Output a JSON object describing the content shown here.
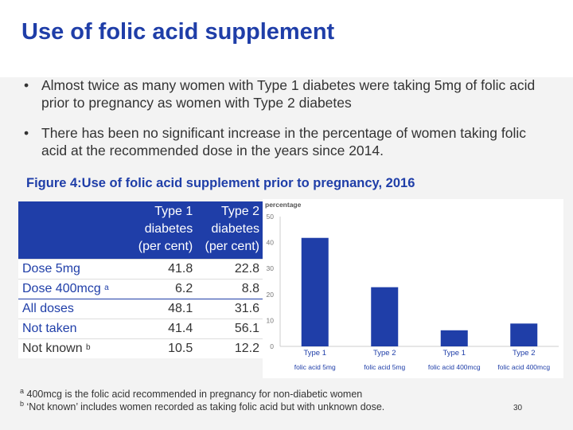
{
  "title": "Use of folic acid supplement",
  "bullets": [
    "Almost twice as many women with Type 1 diabetes were taking 5mg of folic acid prior to pregnancy as women with Type 2 diabetes",
    "There has been no significant increase in the percentage of women taking folic acid at the recommended dose in the years since 2014."
  ],
  "bullet_glyph": "•",
  "figure_title": "Figure 4:Use of folic acid supplement prior to pregnancy, 2016",
  "table": {
    "headers": [
      "",
      "Type 1 diabetes (per cent)",
      "Type 2 diabetes (per cent)"
    ],
    "rows": [
      {
        "label": "Dose 5mg",
        "sup": "",
        "t1": "41.8",
        "t2": "22.8"
      },
      {
        "label": "Dose 400mcg",
        "sup": "a",
        "t1": "6.2",
        "t2": "8.8"
      },
      {
        "label": "All doses",
        "sup": "",
        "t1": "48.1",
        "t2": "31.6"
      },
      {
        "label": "Not taken",
        "sup": "",
        "t1": "41.4",
        "t2": "56.1"
      },
      {
        "label": "Not known",
        "sup": "b",
        "t1": "10.5",
        "t2": "12.2"
      }
    ]
  },
  "chart_data": {
    "type": "bar",
    "ylabel": "percentage",
    "ylim": [
      0,
      50
    ],
    "yticks": [
      0,
      10,
      20,
      30,
      40,
      50
    ],
    "categories": [
      [
        "Type 1",
        "folic acid 5mg"
      ],
      [
        "Type 2",
        "folic acid 5mg"
      ],
      [
        "Type 1",
        "folic acid 400mcg"
      ],
      [
        "Type 2",
        "folic acid 400mcg"
      ]
    ],
    "values": [
      41.8,
      22.8,
      6.2,
      8.8
    ],
    "bar_color": "#1f3ea8",
    "grid": false
  },
  "footnotes": [
    {
      "mark": "a",
      "text": "400mcg is the folic acid recommended in pregnancy for non-diabetic women"
    },
    {
      "mark": "b",
      "text": "‘Not known’ includes women recorded as taking folic acid but with unknown dose."
    }
  ],
  "page_number": "30",
  "colors": {
    "accent": "#1f3ea8",
    "text": "#333333",
    "background": "#f3f3f3"
  }
}
